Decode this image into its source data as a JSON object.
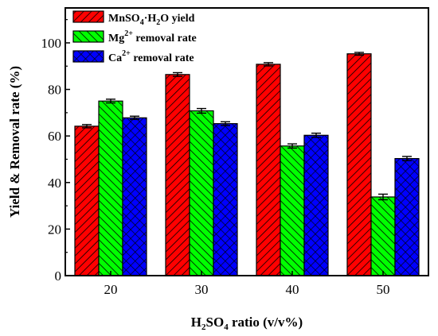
{
  "chart_data": {
    "type": "bar",
    "xlabel_main": "H",
    "xlabel_sub": "2",
    "xlabel_mid": "SO",
    "xlabel_sub2": "4",
    "xlabel_tail": " ratio (v/v%)",
    "ylabel": "Yield & Removal rate (%)",
    "categories": [
      "20",
      "30",
      "40",
      "50"
    ],
    "ylim": [
      0,
      115
    ],
    "yticks": [
      0,
      20,
      40,
      60,
      80,
      100
    ],
    "legend_position": "top-left",
    "series": [
      {
        "name": "MnSO4·H2O yield",
        "legend_parts": [
          "MnSO",
          "4",
          "·H",
          "2",
          "O yield"
        ],
        "color": "#ff0000",
        "pattern": "diagonal",
        "values": [
          64.2,
          86.4,
          90.8,
          95.3
        ],
        "errors": [
          0.7,
          0.8,
          0.7,
          0.6
        ]
      },
      {
        "name": "Mg2+ removal rate",
        "legend_parts": [
          "Mg",
          "2+",
          " removal rate"
        ],
        "color": "#00ff00",
        "pattern": "diagonal-reverse",
        "values": [
          75.0,
          70.8,
          55.7,
          33.8
        ],
        "errors": [
          0.8,
          1.0,
          0.9,
          1.2
        ]
      },
      {
        "name": "Ca2+ removal rate",
        "legend_parts": [
          "Ca",
          "2+",
          " removal rate"
        ],
        "color": "#0000ff",
        "pattern": "crosshatch",
        "values": [
          67.8,
          65.3,
          60.3,
          50.3
        ],
        "errors": [
          0.7,
          0.8,
          0.9,
          0.9
        ]
      }
    ]
  }
}
